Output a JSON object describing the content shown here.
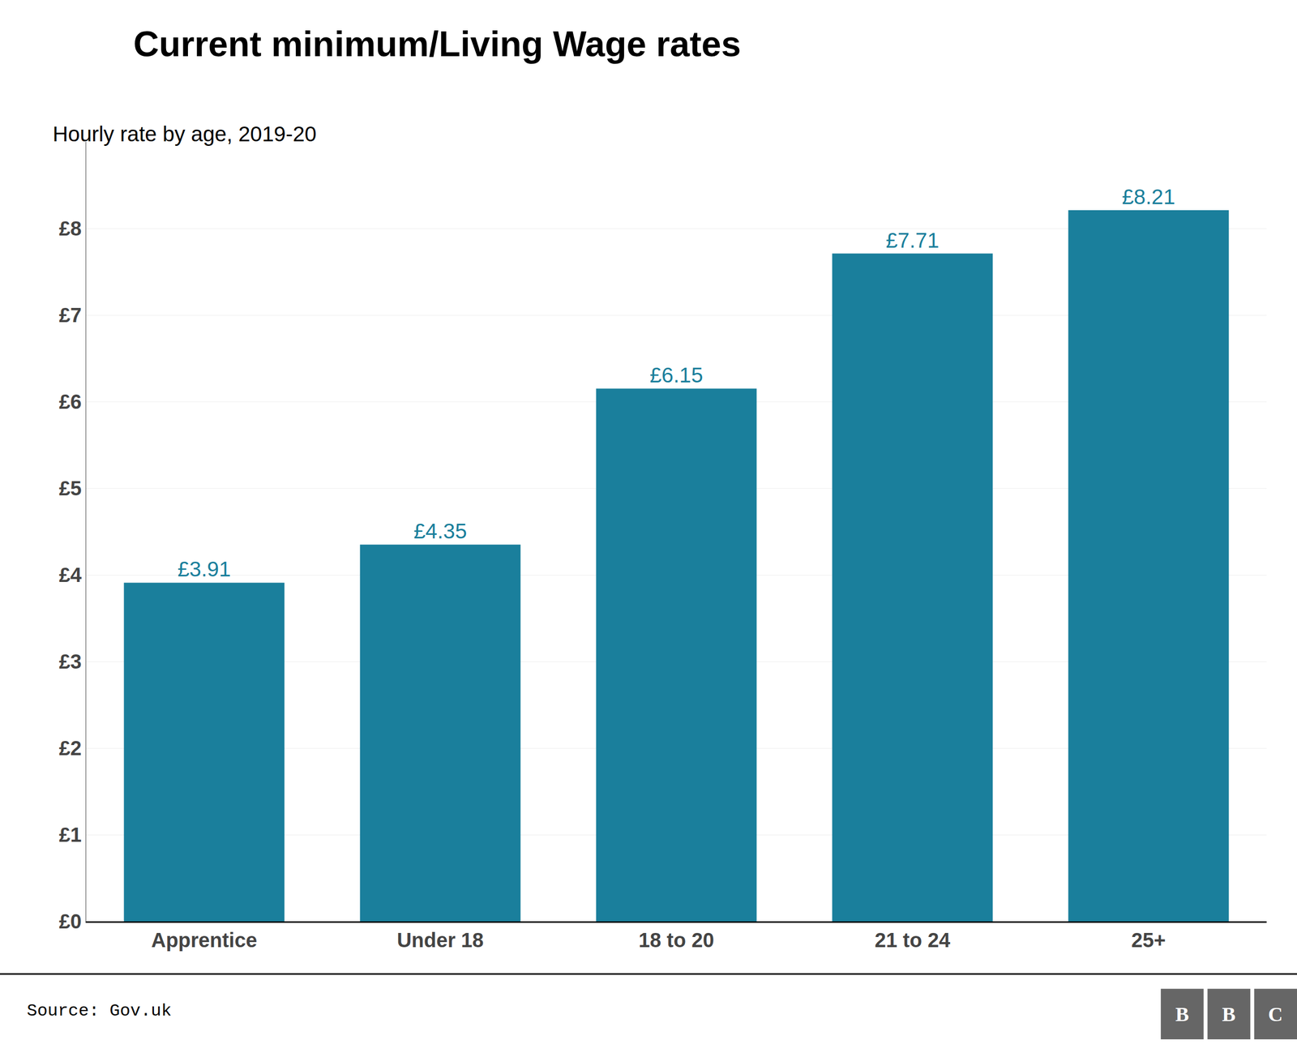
{
  "chart_data": {
    "type": "bar",
    "title": "Current minimum/Living Wage rates",
    "subtitle": "Hourly rate by age, 2019-20",
    "categories": [
      "Apprentice",
      "Under 18",
      "18 to 20",
      "21 to 24",
      "25+"
    ],
    "values": [
      3.91,
      4.35,
      6.15,
      7.71,
      8.21
    ],
    "value_labels": [
      "£3.91",
      "£4.35",
      "£6.15",
      "£7.71",
      "£8.21"
    ],
    "data_labels": true,
    "color": "#1a7f9c",
    "ylim": [
      0,
      9.0
    ],
    "yticks": [
      {
        "value": 0,
        "label": "£0"
      },
      {
        "value": 1,
        "label": "£1"
      },
      {
        "value": 2,
        "label": "£2"
      },
      {
        "value": 3,
        "label": "£3"
      },
      {
        "value": 4,
        "label": "£4"
      },
      {
        "value": 5,
        "label": "£5"
      },
      {
        "value": 6,
        "label": "£6"
      },
      {
        "value": 7,
        "label": "£7"
      },
      {
        "value": 8,
        "label": "£8"
      }
    ],
    "grid": true,
    "annotations": [
      "Source: Gov.uk",
      "B",
      "B",
      "C"
    ]
  }
}
